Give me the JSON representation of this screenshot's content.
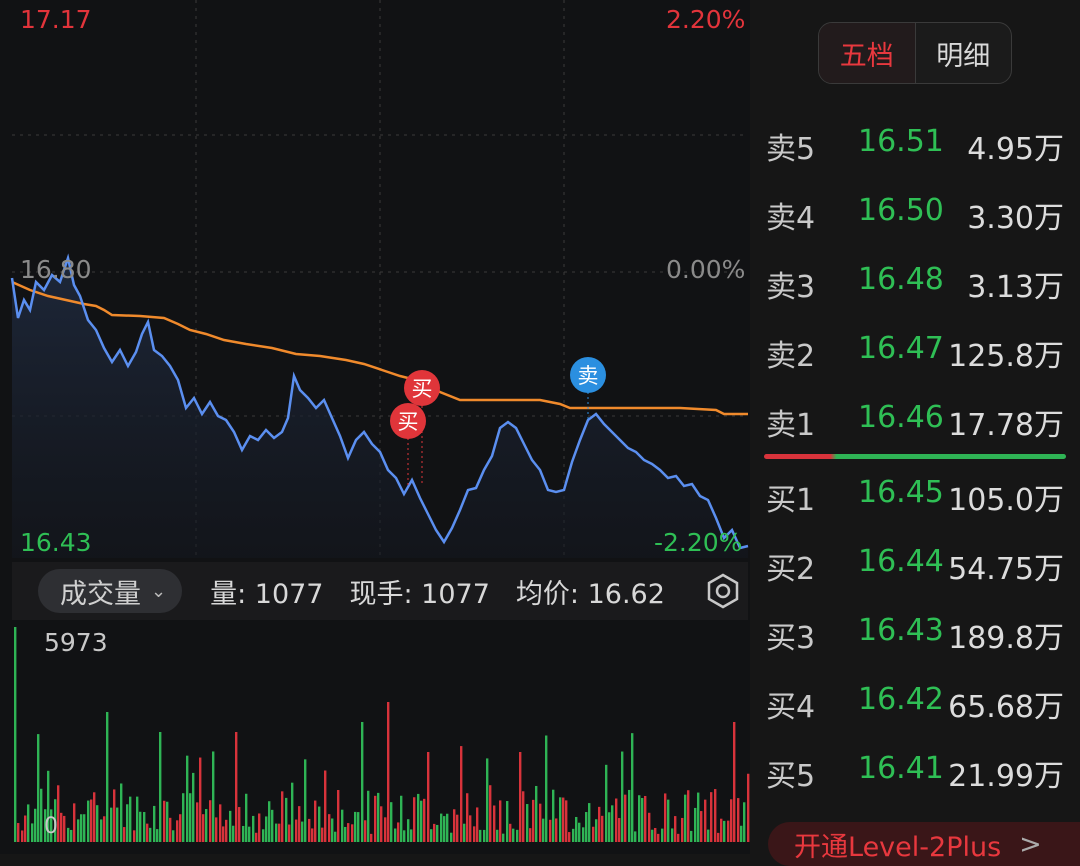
{
  "price_chart": {
    "top_price": "17.17",
    "top_pct": "2.20%",
    "mid_price": "16.80",
    "mid_pct": "0.00%",
    "bottom_price": "16.43",
    "bottom_pct": "-2.20%",
    "markers": [
      {
        "label": "买",
        "color": "#e0353a"
      },
      {
        "label": "买",
        "color": "#e0353a"
      },
      {
        "label": "卖",
        "color": "#2b8fe0"
      }
    ]
  },
  "volume_bar": {
    "selector_label": "成交量",
    "volume": "量: 1077",
    "current_hand": "现手: 1077",
    "avg_price": "均价: 16.62",
    "max_label": "5973",
    "zero_label": "0"
  },
  "order_book": {
    "tabs": [
      "五档",
      "明细"
    ],
    "asks": [
      {
        "name": "卖5",
        "price": "16.51",
        "qty": "4.95万"
      },
      {
        "name": "卖4",
        "price": "16.50",
        "qty": "3.30万"
      },
      {
        "name": "卖3",
        "price": "16.48",
        "qty": "3.13万"
      },
      {
        "name": "卖2",
        "price": "16.47",
        "qty": "125.8万"
      },
      {
        "name": "卖1",
        "price": "16.46",
        "qty": "17.78万"
      }
    ],
    "bids": [
      {
        "name": "买1",
        "price": "16.45",
        "qty": "105.0万"
      },
      {
        "name": "买2",
        "price": "16.44",
        "qty": "54.75万"
      },
      {
        "name": "买3",
        "price": "16.43",
        "qty": "189.8万"
      },
      {
        "name": "买4",
        "price": "16.42",
        "qty": "65.68万"
      },
      {
        "name": "买5",
        "price": "16.41",
        "qty": "21.99万"
      }
    ],
    "level2_label": "开通Level-2Plus",
    "level2_arrow": ">"
  },
  "colors": {
    "up": "#e2343b",
    "down": "#2fbf55",
    "price_line": "#5b8ff0",
    "avg_line": "#f08a2c"
  }
}
